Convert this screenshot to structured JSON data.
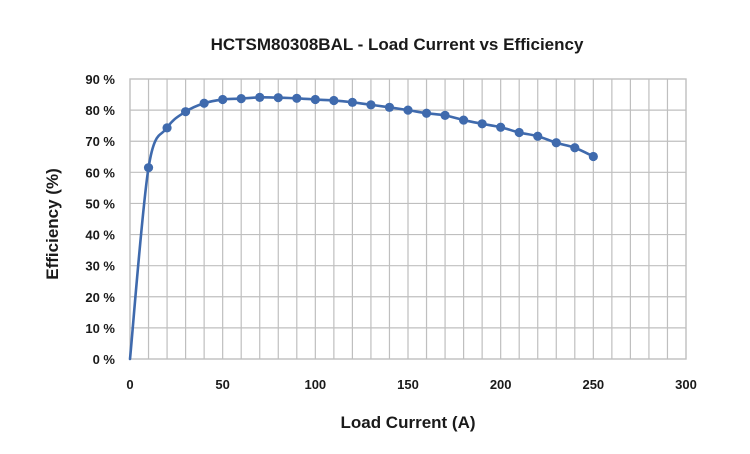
{
  "chart_data": {
    "type": "line",
    "title": "HCTSM80308BAL - Load Current vs Efficiency",
    "xlabel": "Load Current (A)",
    "ylabel": "Efficiency (%)",
    "xlim": [
      0,
      300
    ],
    "ylim": [
      0,
      90
    ],
    "x_ticks": [
      0,
      50,
      100,
      150,
      200,
      250,
      300
    ],
    "x_tick_labels": [
      "0",
      "50",
      "100",
      "150",
      "200",
      "250",
      "300"
    ],
    "y_ticks": [
      0,
      10,
      20,
      30,
      40,
      50,
      60,
      70,
      80,
      90
    ],
    "y_tick_labels": [
      "0 %",
      "10 %",
      "20 %",
      "30 %",
      "40 %",
      "50 %",
      "60 %",
      "70 %",
      "80 %",
      "90 %"
    ],
    "x_grid_step": 10,
    "grid": true,
    "line_color": "#3f6aad",
    "grid_color": "#bfbfbf",
    "series": [
      {
        "x": [
          0,
          10,
          20,
          30,
          40,
          50,
          60,
          70,
          80,
          90,
          100,
          110,
          120,
          130,
          140,
          150,
          160,
          170,
          180,
          190,
          200,
          210,
          220,
          230,
          240,
          250
        ],
        "y": [
          0,
          61.5,
          74.3,
          79.5,
          82.2,
          83.4,
          83.7,
          84.1,
          84.0,
          83.8,
          83.4,
          83.1,
          82.5,
          81.7,
          80.9,
          80.0,
          79.0,
          78.3,
          76.8,
          75.6,
          74.5,
          72.8,
          71.6,
          69.5,
          67.9,
          65.1
        ],
        "markers": [
          false,
          true,
          true,
          true,
          true,
          true,
          true,
          true,
          true,
          true,
          true,
          true,
          true,
          true,
          true,
          true,
          true,
          true,
          true,
          true,
          true,
          true,
          true,
          true,
          true,
          true
        ]
      }
    ]
  }
}
